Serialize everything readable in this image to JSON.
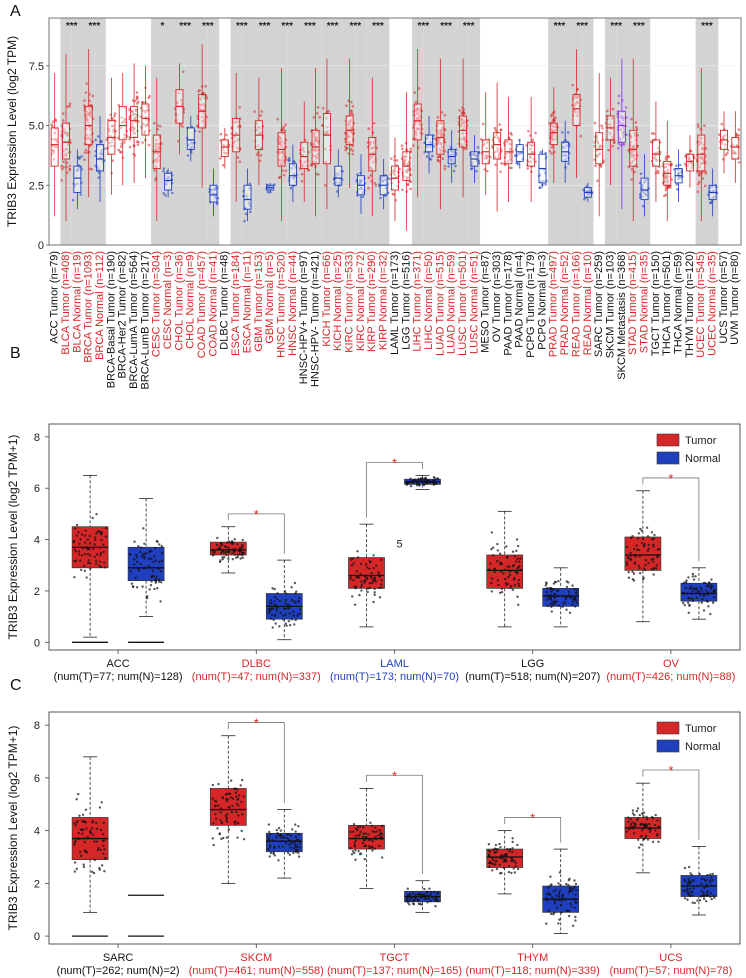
{
  "colors": {
    "tumor": "#d62728",
    "normal": "#1f3fbf",
    "metastasis": "#8a2be2",
    "default": "#222222",
    "shade": "#d3d3d3"
  },
  "chart_data": [
    {
      "panel": "A",
      "type": "box",
      "ylabel": "TRIB3 Expression Level (log2 TPM)",
      "ylim": [
        0,
        9.5
      ],
      "yticks": [
        "0",
        "2.5",
        "5.0",
        "7.5"
      ],
      "groups": [
        {
          "label": "ACC Tumor (n=79)",
          "kind": "tumor",
          "color": "default",
          "median": 4.2,
          "q1": 3.3,
          "q3": 4.9,
          "min": 1.2,
          "max": 7.2
        },
        {
          "label": "BLCA Tumor (n=408)",
          "kind": "tumor",
          "color": "red",
          "median": 4.3,
          "q1": 3.6,
          "q3": 5.1,
          "min": 1.0,
          "max": 8.0,
          "sig": "***"
        },
        {
          "label": "BLCA Normal (n=19)",
          "kind": "normal",
          "color": "red",
          "median": 2.8,
          "q1": 2.2,
          "q3": 3.3,
          "min": 1.5,
          "max": 4.0
        },
        {
          "label": "BRCA Tumor (n=1093)",
          "kind": "tumor",
          "color": "red",
          "median": 5.0,
          "q1": 4.2,
          "q3": 5.8,
          "min": 2.0,
          "max": 8.2,
          "sig": "***"
        },
        {
          "label": "BRCA Normal (n=112)",
          "kind": "normal",
          "color": "red",
          "median": 3.6,
          "q1": 3.1,
          "q3": 4.2,
          "min": 1.8,
          "max": 5.4
        },
        {
          "label": "BRCA-Basal Tumor (n=190)",
          "kind": "tumor",
          "color": "default",
          "median": 4.5,
          "q1": 3.8,
          "q3": 5.2,
          "min": 2.1,
          "max": 7.0
        },
        {
          "label": "BRCA-Her2 Tumor (n=82)",
          "kind": "tumor",
          "color": "default",
          "median": 5.0,
          "q1": 4.4,
          "q3": 5.8,
          "min": 2.5,
          "max": 7.2
        },
        {
          "label": "BRCA-LumA Tumor (n=564)",
          "kind": "tumor",
          "color": "default",
          "median": 5.2,
          "q1": 4.5,
          "q3": 5.8,
          "min": 2.6,
          "max": 7.6
        },
        {
          "label": "BRCA-LumB Tumor (n=217)",
          "kind": "tumor",
          "color": "default",
          "median": 5.3,
          "q1": 4.6,
          "q3": 5.9,
          "min": 2.8,
          "max": 7.5
        },
        {
          "label": "CESC Tumor (n=304)",
          "kind": "tumor",
          "color": "red",
          "median": 3.9,
          "q1": 3.2,
          "q3": 4.6,
          "min": 1.0,
          "max": 7.0,
          "sig": "*"
        },
        {
          "label": "CESC Normal (n=3)",
          "kind": "normal",
          "color": "red",
          "median": 2.7,
          "q1": 2.3,
          "q3": 3.0,
          "min": 2.0,
          "max": 3.2
        },
        {
          "label": "CHOL Tumor (n=36)",
          "kind": "tumor",
          "color": "red",
          "median": 5.8,
          "q1": 5.1,
          "q3": 6.5,
          "min": 3.8,
          "max": 7.6,
          "sig": "***"
        },
        {
          "label": "CHOL Normal (n=9)",
          "kind": "normal",
          "color": "red",
          "median": 4.4,
          "q1": 4.0,
          "q3": 4.9,
          "min": 3.5,
          "max": 5.4
        },
        {
          "label": "COAD Tumor (n=457)",
          "kind": "tumor",
          "color": "red",
          "median": 5.6,
          "q1": 4.9,
          "q3": 6.3,
          "min": 2.4,
          "max": 8.4,
          "sig": "***"
        },
        {
          "label": "COAD Normal (n=41)",
          "kind": "normal",
          "color": "red",
          "median": 2.1,
          "q1": 1.8,
          "q3": 2.5,
          "min": 1.2,
          "max": 3.2
        },
        {
          "label": "DLBC Tumor (n=48)",
          "kind": "tumor",
          "color": "default",
          "median": 4.1,
          "q1": 3.7,
          "q3": 4.4,
          "min": 3.2,
          "max": 4.9
        },
        {
          "label": "ESCA Tumor (n=184)",
          "kind": "tumor",
          "color": "red",
          "median": 4.6,
          "q1": 3.9,
          "q3": 5.3,
          "min": 1.8,
          "max": 7.2,
          "sig": "***"
        },
        {
          "label": "ESCA Normal (n=11)",
          "kind": "normal",
          "color": "red",
          "median": 1.9,
          "q1": 1.5,
          "q3": 2.5,
          "min": 1.0,
          "max": 3.2
        },
        {
          "label": "GBM Tumor (n=153)",
          "kind": "tumor",
          "color": "red",
          "median": 4.6,
          "q1": 4.0,
          "q3": 5.2,
          "min": 2.5,
          "max": 7.0,
          "sig": "***"
        },
        {
          "label": "GBM Normal (n=5)",
          "kind": "normal",
          "color": "red",
          "median": 2.4,
          "q1": 2.3,
          "q3": 2.5,
          "min": 2.2,
          "max": 2.6
        },
        {
          "label": "HNSC Tumor (n=520)",
          "kind": "tumor",
          "color": "red",
          "median": 4.0,
          "q1": 3.3,
          "q3": 4.7,
          "min": 1.0,
          "max": 7.4,
          "sig": "***"
        },
        {
          "label": "HNSC Normal (n=44)",
          "kind": "normal",
          "color": "red",
          "median": 2.9,
          "q1": 2.5,
          "q3": 3.4,
          "min": 1.8,
          "max": 4.2
        },
        {
          "label": "HNSC-HPV+ Tumor (n=97)",
          "kind": "tumor",
          "color": "default",
          "median": 3.7,
          "q1": 3.2,
          "q3": 4.3,
          "min": 1.8,
          "max": 6.0,
          "sig": "***"
        },
        {
          "label": "HNSC-HPV- Tumor (n=421)",
          "kind": "tumor",
          "color": "default",
          "median": 4.1,
          "q1": 3.4,
          "q3": 4.8,
          "min": 1.2,
          "max": 7.4
        },
        {
          "label": "KICH Tumor (n=66)",
          "kind": "tumor",
          "color": "red",
          "median": 4.6,
          "q1": 3.4,
          "q3": 5.5,
          "min": 1.5,
          "max": 7.8,
          "sig": "***"
        },
        {
          "label": "KICH Normal (n=25)",
          "kind": "normal",
          "color": "red",
          "median": 2.8,
          "q1": 2.5,
          "q3": 3.3,
          "min": 2.0,
          "max": 4.0
        },
        {
          "label": "KIRC Tumor (n=533)",
          "kind": "tumor",
          "color": "red",
          "median": 4.8,
          "q1": 4.2,
          "q3": 5.4,
          "min": 2.4,
          "max": 7.8,
          "sig": "***"
        },
        {
          "label": "KIRC Normal (n=72)",
          "kind": "normal",
          "color": "red",
          "median": 2.5,
          "q1": 2.1,
          "q3": 2.9,
          "min": 1.3,
          "max": 3.8
        },
        {
          "label": "KIRP Tumor (n=290)",
          "kind": "tumor",
          "color": "red",
          "median": 3.8,
          "q1": 3.1,
          "q3": 4.5,
          "min": 1.2,
          "max": 7.0,
          "sig": "***"
        },
        {
          "label": "KIRP Normal (n=32)",
          "kind": "normal",
          "color": "red",
          "median": 2.5,
          "q1": 2.1,
          "q3": 2.9,
          "min": 1.5,
          "max": 3.6
        },
        {
          "label": "LAML Tumor (n=173)",
          "kind": "tumor",
          "color": "default",
          "median": 2.8,
          "q1": 2.3,
          "q3": 3.3,
          "min": 1.0,
          "max": 4.5
        },
        {
          "label": "LGG Tumor (n=516)",
          "kind": "tumor",
          "color": "default",
          "median": 3.3,
          "q1": 2.7,
          "q3": 3.9,
          "min": 0.6,
          "max": 6.4
        },
        {
          "label": "LIHC Tumor (n=371)",
          "kind": "tumor",
          "color": "red",
          "median": 5.2,
          "q1": 4.4,
          "q3": 5.9,
          "min": 2.0,
          "max": 8.2,
          "sig": "***"
        },
        {
          "label": "LIHC Normal (n=50)",
          "kind": "normal",
          "color": "red",
          "median": 4.2,
          "q1": 3.9,
          "q3": 4.6,
          "min": 3.0,
          "max": 5.4
        },
        {
          "label": "LUAD Tumor (n=515)",
          "kind": "tumor",
          "color": "red",
          "median": 4.5,
          "q1": 3.8,
          "q3": 5.2,
          "min": 1.5,
          "max": 7.8,
          "sig": "***"
        },
        {
          "label": "LUAD Normal (n=59)",
          "kind": "normal",
          "color": "red",
          "median": 3.7,
          "q1": 3.4,
          "q3": 4.0,
          "min": 2.6,
          "max": 4.8
        },
        {
          "label": "LUSC Tumor (n=501)",
          "kind": "tumor",
          "color": "red",
          "median": 4.8,
          "q1": 4.1,
          "q3": 5.4,
          "min": 2.0,
          "max": 7.8,
          "sig": "***"
        },
        {
          "label": "LUSC Normal (n=51)",
          "kind": "normal",
          "color": "red",
          "median": 3.6,
          "q1": 3.3,
          "q3": 3.9,
          "min": 2.6,
          "max": 4.6
        },
        {
          "label": "MESO Tumor (n=87)",
          "kind": "tumor",
          "color": "default",
          "median": 3.9,
          "q1": 3.4,
          "q3": 4.4,
          "min": 2.1,
          "max": 6.4
        },
        {
          "label": "OV Tumor (n=303)",
          "kind": "tumor",
          "color": "default",
          "median": 4.2,
          "q1": 3.6,
          "q3": 4.7,
          "min": 1.4,
          "max": 6.8
        },
        {
          "label": "PAAD Tumor (n=178)",
          "kind": "tumor",
          "color": "default",
          "median": 3.9,
          "q1": 3.4,
          "q3": 4.4,
          "min": 1.8,
          "max": 6.2
        },
        {
          "label": "PAAD Normal (n=4)",
          "kind": "normal",
          "color": "default",
          "median": 3.9,
          "q1": 3.5,
          "q3": 4.2,
          "min": 3.2,
          "max": 4.4
        },
        {
          "label": "PCPG Tumor (n=179)",
          "kind": "tumor",
          "color": "default",
          "median": 3.8,
          "q1": 3.3,
          "q3": 4.3,
          "min": 1.8,
          "max": 6.2
        },
        {
          "label": "PCPG Normal (n=3)",
          "kind": "normal",
          "color": "default",
          "median": 3.2,
          "q1": 2.6,
          "q3": 3.8,
          "min": 2.4,
          "max": 4.0
        },
        {
          "label": "PRAD Tumor (n=497)",
          "kind": "tumor",
          "color": "red",
          "median": 4.7,
          "q1": 4.2,
          "q3": 5.1,
          "min": 2.6,
          "max": 6.6,
          "sig": "***"
        },
        {
          "label": "PRAD Normal (n=52)",
          "kind": "normal",
          "color": "red",
          "median": 3.9,
          "q1": 3.5,
          "q3": 4.3,
          "min": 2.6,
          "max": 5.2
        },
        {
          "label": "READ Tumor (n=166)",
          "kind": "tumor",
          "color": "red",
          "median": 5.7,
          "q1": 5.0,
          "q3": 6.3,
          "min": 2.8,
          "max": 8.2,
          "sig": "***"
        },
        {
          "label": "READ Normal (n=10)",
          "kind": "normal",
          "color": "red",
          "median": 2.2,
          "q1": 2.0,
          "q3": 2.4,
          "min": 1.8,
          "max": 2.6
        },
        {
          "label": "SARC Tumor (n=259)",
          "kind": "tumor",
          "color": "default",
          "median": 4.0,
          "q1": 3.4,
          "q3": 4.7,
          "min": 1.2,
          "max": 7.2
        },
        {
          "label": "SKCM Tumor (n=103)",
          "kind": "tumor",
          "color": "default",
          "median": 4.9,
          "q1": 4.4,
          "q3": 5.4,
          "min": 2.5,
          "max": 7.0,
          "sig": "***"
        },
        {
          "label": "SKCM Metastasis (n=368)",
          "kind": "metastasis",
          "color": "default",
          "median": 5.0,
          "q1": 4.3,
          "q3": 5.6,
          "min": 1.5,
          "max": 7.8
        },
        {
          "label": "STAD Tumor (n=415)",
          "kind": "tumor",
          "color": "red",
          "median": 4.0,
          "q1": 3.3,
          "q3": 4.8,
          "min": 1.0,
          "max": 7.8,
          "sig": "***"
        },
        {
          "label": "STAD Normal (n=35)",
          "kind": "normal",
          "color": "red",
          "median": 2.3,
          "q1": 1.9,
          "q3": 2.8,
          "min": 1.2,
          "max": 3.8
        },
        {
          "label": "TGCT Tumor (n=150)",
          "kind": "tumor",
          "color": "default",
          "median": 3.8,
          "q1": 3.3,
          "q3": 4.4,
          "min": 1.8,
          "max": 6.0
        },
        {
          "label": "THCA Tumor (n=501)",
          "kind": "tumor",
          "color": "default",
          "median": 3.0,
          "q1": 2.5,
          "q3": 3.5,
          "min": 1.0,
          "max": 5.2
        },
        {
          "label": "THCA Normal (n=59)",
          "kind": "normal",
          "color": "default",
          "median": 2.9,
          "q1": 2.6,
          "q3": 3.2,
          "min": 1.8,
          "max": 4.0
        },
        {
          "label": "THYM Tumor (n=120)",
          "kind": "tumor",
          "color": "default",
          "median": 3.5,
          "q1": 3.1,
          "q3": 3.8,
          "min": 2.4,
          "max": 4.6
        },
        {
          "label": "UCEC Tumor (n=545)",
          "kind": "tumor",
          "color": "red",
          "median": 3.8,
          "q1": 3.1,
          "q3": 4.6,
          "min": 1.0,
          "max": 7.4,
          "sig": "***"
        },
        {
          "label": "UCEC Normal (n=35)",
          "kind": "normal",
          "color": "red",
          "median": 2.2,
          "q1": 1.9,
          "q3": 2.5,
          "min": 1.2,
          "max": 3.2
        },
        {
          "label": "UCS Tumor (n=57)",
          "kind": "tumor",
          "color": "default",
          "median": 4.4,
          "q1": 4.0,
          "q3": 4.8,
          "min": 3.0,
          "max": 5.6
        },
        {
          "label": "UVM Tumor (n=80)",
          "kind": "tumor",
          "color": "default",
          "median": 4.1,
          "q1": 3.6,
          "q3": 4.5,
          "min": 2.6,
          "max": 5.6
        }
      ]
    },
    {
      "panel": "B",
      "type": "box",
      "ylabel": "TRIB3 Expression Level (log2 TPM+1)",
      "ylim": [
        -0.3,
        8.5
      ],
      "yticks": [
        0,
        2,
        4,
        6,
        8
      ],
      "legend": [
        "Tumor",
        "Normal"
      ],
      "annotation": "5",
      "cancers": [
        {
          "name": "ACC",
          "n": "(num(T)=77; num(N)=128)",
          "color": "black",
          "tumor": [
            2.9,
            3.7,
            4.5,
            0.2,
            6.5
          ],
          "normal": [
            2.4,
            2.9,
            3.7,
            1.0,
            5.6
          ],
          "sig": false
        },
        {
          "name": "DLBC",
          "n": "(num(T)=47; num(N)=337)",
          "color": "red",
          "tumor": [
            3.4,
            3.6,
            3.9,
            2.7,
            4.5
          ],
          "normal": [
            0.9,
            1.4,
            1.9,
            0.1,
            3.2
          ],
          "sig": true
        },
        {
          "name": "LAML",
          "n": "(num(T)=173; num(N)=70)",
          "color": "blue",
          "tumor": [
            2.1,
            2.6,
            3.3,
            0.6,
            4.6
          ],
          "normal": [
            6.15,
            6.25,
            6.35,
            5.95,
            6.5
          ],
          "sig": true
        },
        {
          "name": "LGG",
          "n": "(num(T)=518; num(N)=207)",
          "color": "black",
          "tumor": [
            2.1,
            2.8,
            3.4,
            0.6,
            5.1
          ],
          "normal": [
            1.4,
            1.8,
            2.1,
            0.6,
            2.9
          ],
          "sig": false
        },
        {
          "name": "OV",
          "n": "(num(T)=426; num(N)=88)",
          "color": "red",
          "tumor": [
            2.8,
            3.4,
            4.1,
            0.8,
            5.9
          ],
          "normal": [
            1.6,
            1.9,
            2.3,
            0.9,
            2.9
          ],
          "sig": true
        }
      ]
    },
    {
      "panel": "C",
      "type": "box",
      "ylabel": "TRIB3 Expression Level (log2 TPM+1)",
      "ylim": [
        -0.3,
        8.5
      ],
      "yticks": [
        0,
        2,
        4,
        6,
        8
      ],
      "legend": [
        "Tumor",
        "Normal"
      ],
      "cancers": [
        {
          "name": "SARC",
          "n": "(num(T)=262; num(N)=2)",
          "color": "black",
          "tumor": [
            2.9,
            3.7,
            4.5,
            0.9,
            6.8
          ],
          "normal": null,
          "sig": false
        },
        {
          "name": "SKCM",
          "n": "(num(T)=461; num(N)=558)",
          "color": "red",
          "tumor": [
            4.2,
            4.8,
            5.6,
            2.0,
            7.6
          ],
          "normal": [
            3.2,
            3.6,
            3.9,
            2.2,
            4.8
          ],
          "sig": true
        },
        {
          "name": "TGCT",
          "n": "(num(T)=137; num(N)=165)",
          "color": "red",
          "tumor": [
            3.3,
            3.7,
            4.2,
            1.8,
            5.6
          ],
          "normal": [
            1.3,
            1.5,
            1.7,
            0.9,
            2.1
          ],
          "sig": true
        },
        {
          "name": "THYM",
          "n": "(num(T)=118; num(N)=339)",
          "color": "red",
          "tumor": [
            2.6,
            3.0,
            3.3,
            1.6,
            4.0
          ],
          "normal": [
            0.9,
            1.4,
            1.9,
            0.1,
            3.3
          ],
          "sig": true
        },
        {
          "name": "UCS",
          "n": "(num(T)=57; num(N)=78)",
          "color": "red",
          "tumor": [
            3.7,
            4.1,
            4.5,
            2.4,
            5.8
          ],
          "normal": [
            1.5,
            1.9,
            2.3,
            0.8,
            3.4
          ],
          "sig": true
        }
      ]
    }
  ]
}
